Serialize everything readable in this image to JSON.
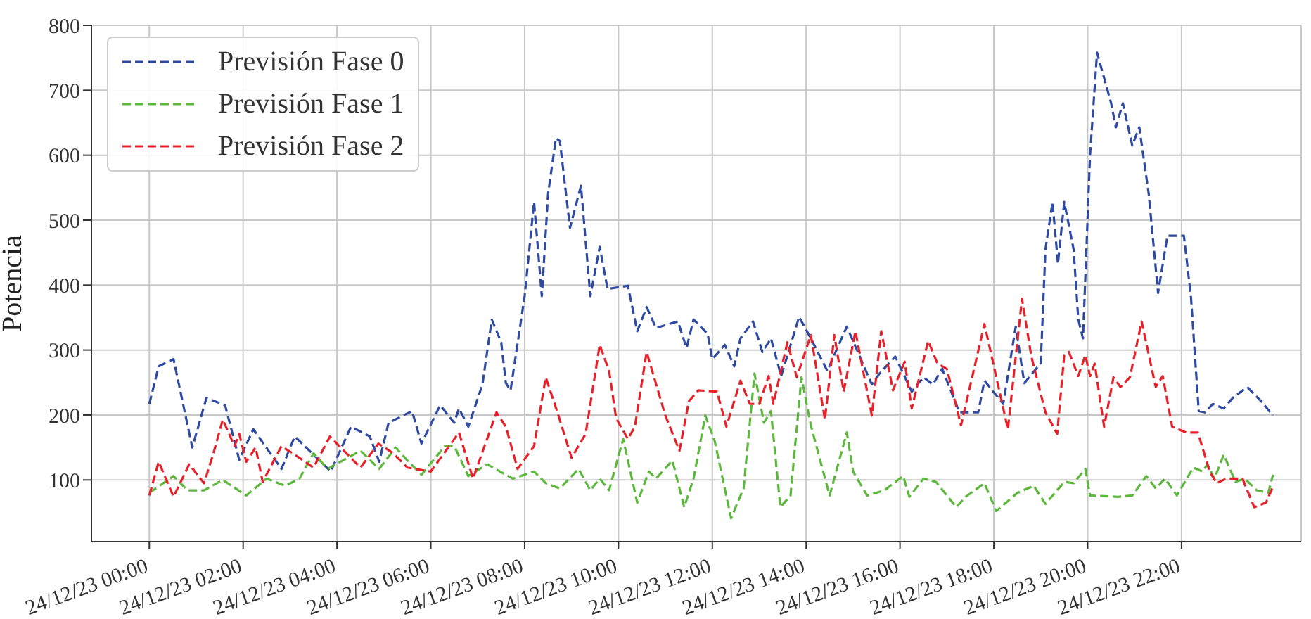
{
  "chart_data": {
    "type": "line",
    "ylabel": "Potencia",
    "xlim": [
      "--12-23T22:46",
      "--12-25T00:33"
    ],
    "ylim": [
      5,
      800
    ],
    "xticks": [
      {
        "value": "--12-24T00:00",
        "label": "24/12/23 00:00"
      },
      {
        "value": "--12-24T02:00",
        "label": "24/12/23 02:00"
      },
      {
        "value": "--12-24T04:00",
        "label": "24/12/23 04:00"
      },
      {
        "value": "--12-24T06:00",
        "label": "24/12/23 06:00"
      },
      {
        "value": "--12-24T08:00",
        "label": "24/12/23 08:00"
      },
      {
        "value": "--12-24T10:00",
        "label": "24/12/23 10:00"
      },
      {
        "value": "--12-24T12:00",
        "label": "24/12/23 12:00"
      },
      {
        "value": "--12-24T14:00",
        "label": "24/12/23 14:00"
      },
      {
        "value": "--12-24T16:00",
        "label": "24/12/23 16:00"
      },
      {
        "value": "--12-24T18:00",
        "label": "24/12/23 18:00"
      },
      {
        "value": "--12-24T20:00",
        "label": "24/12/23 20:00"
      },
      {
        "value": "--12-24T22:00",
        "label": "24/12/23 22:00"
      }
    ],
    "yticks": [
      100,
      200,
      300,
      400,
      500,
      600,
      700,
      800
    ],
    "grid": true,
    "legend": "top left",
    "line_style": "dashed",
    "marker": "none",
    "series": [
      {
        "name": "Previsión Fase 0",
        "color": "#2e4aa3",
        "x": [
          "--12-24T00:00",
          "--12-24T00:12",
          "--12-24T00:31",
          "--12-24T00:55",
          "--12-24T01:13",
          "--12-24T01:37",
          "--12-24T01:55",
          "--12-24T02:13",
          "--12-24T02:49",
          "--12-24T03:06",
          "--12-24T03:52",
          "--12-24T04:18",
          "--12-24T04:42",
          "--12-24T04:54",
          "--12-24T05:06",
          "--12-24T05:36",
          "--12-24T05:48",
          "--12-24T06:12",
          "--12-24T06:30",
          "--12-24T06:36",
          "--12-24T06:48",
          "--12-24T07:06",
          "--12-24T07:18",
          "--12-24T07:30",
          "--12-24T07:36",
          "--12-24T07:42",
          "--12-24T08:00",
          "--12-24T08:12",
          "--12-24T08:22",
          "--12-24T08:30",
          "--12-24T08:40",
          "--12-24T08:45",
          "--12-24T08:58",
          "--12-24T09:12",
          "--12-24T09:24",
          "--12-24T09:36",
          "--12-24T09:46",
          "--12-24T10:12",
          "--12-24T10:24",
          "--12-24T10:36",
          "--12-24T10:48",
          "--12-24T11:16",
          "--12-24T11:27",
          "--12-24T11:36",
          "--12-24T11:54",
          "--12-24T12:00",
          "--12-24T12:16",
          "--12-24T12:28",
          "--12-24T12:36",
          "--12-24T12:52",
          "--12-24T13:04",
          "--12-24T13:15",
          "--12-24T13:28",
          "--12-24T13:51",
          "--12-24T14:06",
          "--12-24T14:27",
          "--12-24T14:52",
          "--12-24T15:24",
          "--12-24T15:34",
          "--12-24T15:54",
          "--12-24T16:15",
          "--12-24T16:30",
          "--12-24T16:42",
          "--12-24T16:54",
          "--12-24T17:16",
          "--12-24T17:40",
          "--12-24T17:48",
          "--12-24T18:12",
          "--12-24T18:28",
          "--12-24T18:39",
          "--12-24T19:00",
          "--12-24T19:06",
          "--12-24T19:15",
          "--12-24T19:22",
          "--12-24T19:30",
          "--12-24T19:42",
          "--12-24T19:48",
          "--12-24T19:54",
          "--12-24T20:03",
          "--12-24T20:12",
          "--12-24T20:30",
          "--12-24T20:36",
          "--12-24T20:45",
          "--12-24T20:57",
          "--12-24T21:06",
          "--12-24T21:18",
          "--12-24T21:30",
          "--12-24T21:42",
          "--12-24T22:03",
          "--12-24T22:12",
          "--12-24T22:22",
          "--12-24T22:30",
          "--12-24T22:40",
          "--12-24T22:54",
          "--12-24T23:06",
          "--12-24T23:24",
          "--12-24T23:42",
          "--12-24T23:57"
        ],
        "values": [
          217,
          275,
          286,
          150,
          226,
          215,
          131,
          178,
          117,
          167,
          113,
          182,
          167,
          128,
          188,
          206,
          156,
          215,
          188,
          210,
          182,
          247,
          347,
          312,
          249,
          238,
          383,
          528,
          383,
          541,
          626,
          622,
          488,
          553,
          383,
          459,
          394,
          399,
          329,
          366,
          334,
          344,
          303,
          347,
          325,
          286,
          308,
          275,
          318,
          344,
          297,
          318,
          260,
          351,
          318,
          268,
          336,
          247,
          264,
          290,
          236,
          258,
          247,
          271,
          204,
          204,
          253,
          217,
          336,
          249,
          280,
          455,
          528,
          433,
          528,
          455,
          347,
          318,
          600,
          758,
          680,
          643,
          680,
          615,
          643,
          541,
          388,
          476,
          476,
          383,
          206,
          204,
          217,
          210,
          227,
          243,
          221,
          199
        ]
      },
      {
        "name": "Previsión Fase 1",
        "color": "#5cb83c",
        "x": [
          "--12-24T00:00",
          "--12-24T00:31",
          "--12-24T00:49",
          "--12-24T01:10",
          "--12-24T01:34",
          "--12-24T02:04",
          "--12-24T02:30",
          "--12-24T02:54",
          "--12-24T03:12",
          "--12-24T03:30",
          "--12-24T03:48",
          "--12-24T04:30",
          "--12-24T04:54",
          "--12-24T05:15",
          "--12-24T05:30",
          "--12-24T05:48",
          "--12-24T06:18",
          "--12-24T06:30",
          "--12-24T06:48",
          "--12-24T07:12",
          "--12-24T07:45",
          "--12-24T08:12",
          "--12-24T08:27",
          "--12-24T08:45",
          "--12-24T09:09",
          "--12-24T09:24",
          "--12-24T09:36",
          "--12-24T09:48",
          "--12-24T10:06",
          "--12-24T10:24",
          "--12-24T10:39",
          "--12-24T10:48",
          "--12-24T11:09",
          "--12-24T11:24",
          "--12-24T11:36",
          "--12-24T11:51",
          "--12-24T12:03",
          "--12-24T12:24",
          "--12-24T12:40",
          "--12-24T12:54",
          "--12-24T13:06",
          "--12-24T13:15",
          "--12-24T13:27",
          "--12-24T13:40",
          "--12-24T13:54",
          "--12-24T14:06",
          "--12-24T14:30",
          "--12-24T14:52",
          "--12-24T15:00",
          "--12-24T15:18",
          "--12-24T15:40",
          "--12-24T16:04",
          "--12-24T16:12",
          "--12-24T16:30",
          "--12-24T16:46",
          "--12-24T17:12",
          "--12-24T17:24",
          "--12-24T17:48",
          "--12-24T18:03",
          "--12-24T18:30",
          "--12-24T18:51",
          "--12-24T19:06",
          "--12-24T19:30",
          "--12-24T19:42",
          "--12-24T19:57",
          "--12-24T20:03",
          "--12-24T20:39",
          "--12-24T20:57",
          "--12-24T21:15",
          "--12-24T21:27",
          "--12-24T21:39",
          "--12-24T21:54",
          "--12-24T22:15",
          "--12-24T22:27",
          "--12-24T22:33",
          "--12-24T22:42",
          "--12-24T22:54",
          "--12-24T23:09",
          "--12-24T23:21",
          "--12-24T23:36",
          "--12-24T23:51",
          "--12-24T23:57"
        ],
        "values": [
          80,
          106,
          84,
          84,
          100,
          76,
          102,
          91,
          102,
          141,
          117,
          145,
          117,
          150,
          130,
          108,
          152,
          152,
          106,
          124,
          102,
          113,
          95,
          87,
          117,
          84,
          102,
          84,
          163,
          65,
          113,
          102,
          130,
          58,
          102,
          199,
          160,
          41,
          87,
          264,
          188,
          206,
          58,
          76,
          258,
          184,
          76,
          173,
          113,
          76,
          84,
          106,
          74,
          102,
          97,
          58,
          74,
          95,
          52,
          80,
          91,
          63,
          97,
          95,
          117,
          76,
          74,
          76,
          106,
          87,
          102,
          76,
          119,
          113,
          124,
          102,
          139,
          97,
          102,
          84,
          80,
          108
        ]
      },
      {
        "name": "Previsión Fase 2",
        "color": "#e8202a",
        "x": [
          "--12-24T00:00",
          "--12-24T00:12",
          "--12-24T00:31",
          "--12-24T00:51",
          "--12-24T01:10",
          "--12-24T01:22",
          "--12-24T01:34",
          "--12-24T01:49",
          "--12-24T01:55",
          "--12-24T02:04",
          "--12-24T02:16",
          "--12-24T02:25",
          "--12-24T02:49",
          "--12-24T03:06",
          "--12-24T03:30",
          "--12-24T03:51",
          "--12-24T04:12",
          "--12-24T04:30",
          "--12-24T04:53",
          "--12-24T05:12",
          "--12-24T05:30",
          "--12-24T06:00",
          "--12-24T06:36",
          "--12-24T06:54",
          "--12-24T07:24",
          "--12-24T07:36",
          "--12-24T07:51",
          "--12-24T08:12",
          "--12-24T08:27",
          "--12-24T08:42",
          "--12-24T09:00",
          "--12-24T09:18",
          "--12-24T09:36",
          "--12-24T09:48",
          "--12-24T09:57",
          "--12-24T10:12",
          "--12-24T10:21",
          "--12-24T10:36",
          "--12-24T11:00",
          "--12-24T11:18",
          "--12-24T11:30",
          "--12-24T11:42",
          "--12-24T12:06",
          "--12-24T12:18",
          "--12-24T12:36",
          "--12-24T12:48",
          "--12-24T13:00",
          "--12-24T13:12",
          "--12-24T13:18",
          "--12-24T13:36",
          "--12-24T13:48",
          "--12-24T14:06",
          "--12-24T14:24",
          "--12-24T14:36",
          "--12-24T14:48",
          "--12-24T15:03",
          "--12-24T15:24",
          "--12-24T15:36",
          "--12-24T15:51",
          "--12-24T16:06",
          "--12-24T16:15",
          "--12-24T16:36",
          "--12-24T16:48",
          "--12-24T17:00",
          "--12-24T17:18",
          "--12-24T17:48",
          "--12-24T18:18",
          "--12-24T18:36",
          "--12-24T18:48",
          "--12-24T19:06",
          "--12-24T19:21",
          "--12-24T19:30",
          "--12-24T19:36",
          "--12-24T19:48",
          "--12-24T19:57",
          "--12-24T20:03",
          "--12-24T20:09",
          "--12-24T20:21",
          "--12-24T20:33",
          "--12-24T20:42",
          "--12-24T20:54",
          "--12-24T21:09",
          "--12-24T21:27",
          "--12-24T21:36",
          "--12-24T21:48",
          "--12-24T22:06",
          "--12-24T22:21",
          "--12-24T22:36",
          "--12-24T22:45",
          "--12-24T22:57",
          "--12-24T23:18",
          "--12-24T23:33",
          "--12-24T23:48",
          "--12-24T23:57"
        ],
        "values": [
          76,
          128,
          74,
          124,
          95,
          141,
          193,
          152,
          171,
          128,
          150,
          97,
          152,
          139,
          119,
          167,
          141,
          119,
          156,
          141,
          119,
          113,
          173,
          102,
          204,
          182,
          117,
          152,
          258,
          204,
          134,
          171,
          308,
          268,
          195,
          163,
          182,
          297,
          199,
          145,
          221,
          238,
          236,
          182,
          253,
          217,
          217,
          260,
          217,
          312,
          258,
          323,
          193,
          323,
          236,
          329,
          199,
          329,
          238,
          282,
          210,
          314,
          279,
          271,
          184,
          340,
          178,
          379,
          290,
          204,
          171,
          292,
          297,
          260,
          292,
          260,
          279,
          182,
          258,
          243,
          258,
          344,
          243,
          260,
          182,
          173,
          173,
          113,
          95,
          102,
          102,
          58,
          65,
          90
        ]
      }
    ]
  }
}
